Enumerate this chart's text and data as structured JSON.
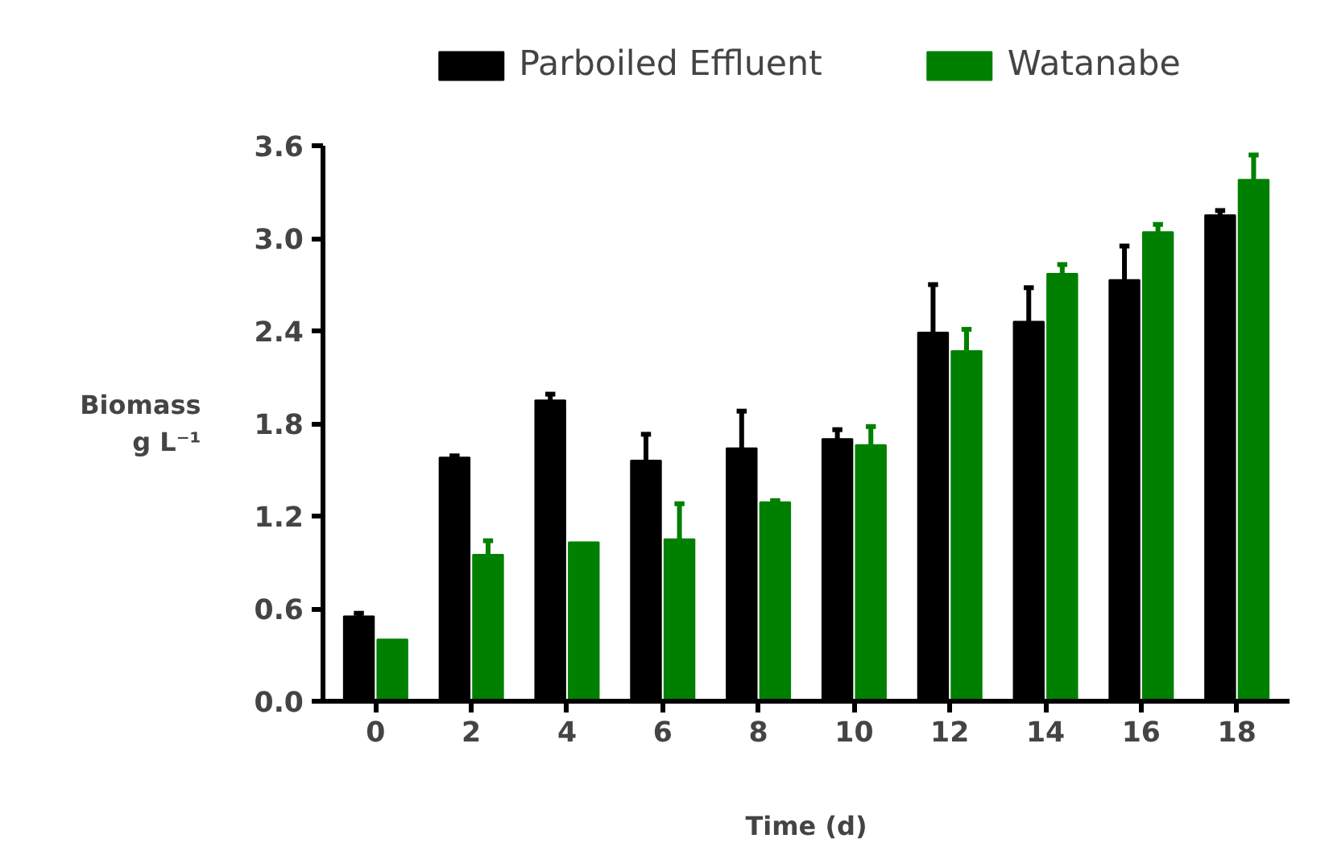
{
  "chart_data": {
    "type": "bar",
    "xlabel": "Time (d)",
    "ylabel": "Biomass\ng L⁻¹",
    "categories": [
      "0",
      "2",
      "4",
      "6",
      "8",
      "10",
      "12",
      "14",
      "16",
      "18"
    ],
    "series": [
      {
        "name": "Parboiled Effluent",
        "color": "#000000",
        "values": [
          0.55,
          1.58,
          1.95,
          1.56,
          1.64,
          1.7,
          2.39,
          2.46,
          2.73,
          3.15
        ],
        "errors": [
          [
            0.55,
            0.57
          ],
          [
            1.58,
            1.59
          ],
          [
            1.95,
            1.99
          ],
          [
            1.56,
            1.73
          ],
          [
            1.64,
            1.88
          ],
          [
            1.7,
            1.76
          ],
          [
            2.39,
            2.7
          ],
          [
            2.46,
            2.68
          ],
          [
            2.73,
            2.95
          ],
          [
            3.15,
            3.18
          ]
        ]
      },
      {
        "name": "Watanabe",
        "color": "#008000",
        "values": [
          0.4,
          0.95,
          1.03,
          1.05,
          1.29,
          1.66,
          2.27,
          2.77,
          3.04,
          3.38
        ],
        "errors": [
          null,
          [
            0.95,
            1.04
          ],
          null,
          [
            1.05,
            1.28
          ],
          [
            1.29,
            1.3
          ],
          [
            1.66,
            1.78
          ],
          [
            2.27,
            2.41
          ],
          [
            2.77,
            2.83
          ],
          [
            3.04,
            3.09
          ],
          [
            3.38,
            3.54
          ]
        ]
      }
    ],
    "ylim": [
      0,
      3.6
    ],
    "yticks": [
      {
        "value": 0,
        "label": "0.0"
      },
      0.6,
      1.2,
      1.8,
      2.4,
      {
        "value": 3,
        "label": "3.0"
      },
      3.6
    ],
    "grid": false,
    "legend": "top"
  }
}
